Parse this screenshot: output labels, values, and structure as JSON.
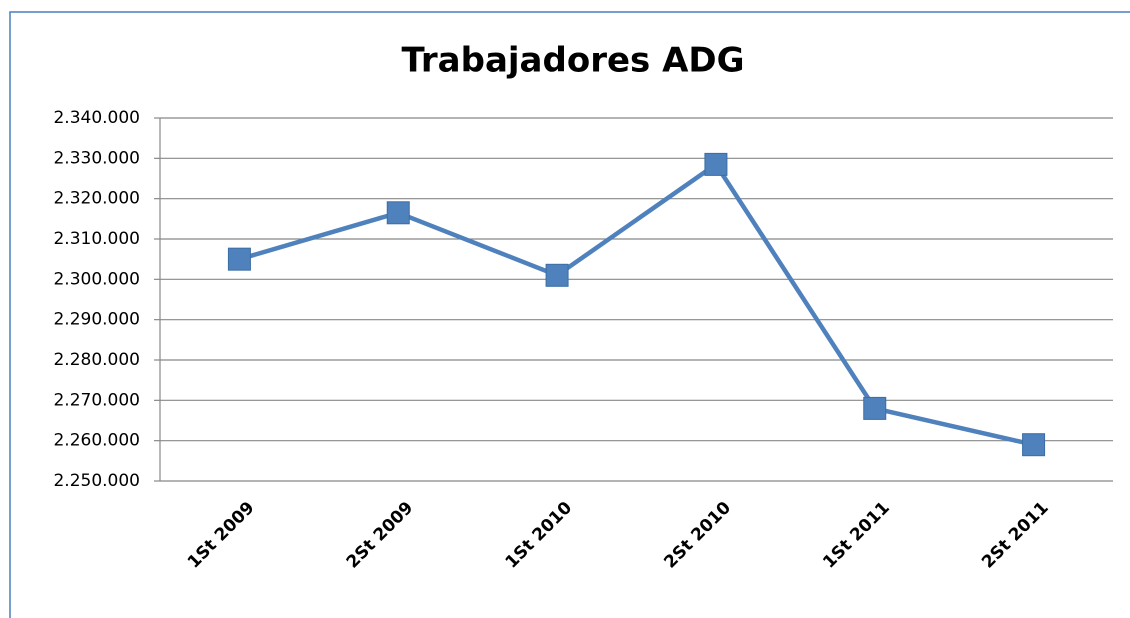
{
  "chart_data": {
    "type": "line",
    "title": "Trabajadores ADG",
    "categories": [
      "1St 2009",
      "2St 2009",
      "1St 2010",
      "2St 2010",
      "1St 2011",
      "2St 2011"
    ],
    "values": [
      2305000,
      2316500,
      2301000,
      2328500,
      2268000,
      2259000
    ],
    "color": "#4f81bd",
    "ylim": [
      2250000,
      2340000
    ],
    "yticks": [
      {
        "value": 2250000,
        "label": "2.250.000"
      },
      {
        "value": 2260000,
        "label": "2.260.000"
      },
      {
        "value": 2270000,
        "label": "2.270.000"
      },
      {
        "value": 2280000,
        "label": "2.280.000"
      },
      {
        "value": 2290000,
        "label": "2.290.000"
      },
      {
        "value": 2300000,
        "label": "2.300.000"
      },
      {
        "value": 2310000,
        "label": "2.310.000"
      },
      {
        "value": 2320000,
        "label": "2.320.000"
      },
      {
        "value": 2330000,
        "label": "2.330.000"
      },
      {
        "value": 2340000,
        "label": "2.340.000"
      }
    ],
    "grid": true
  }
}
